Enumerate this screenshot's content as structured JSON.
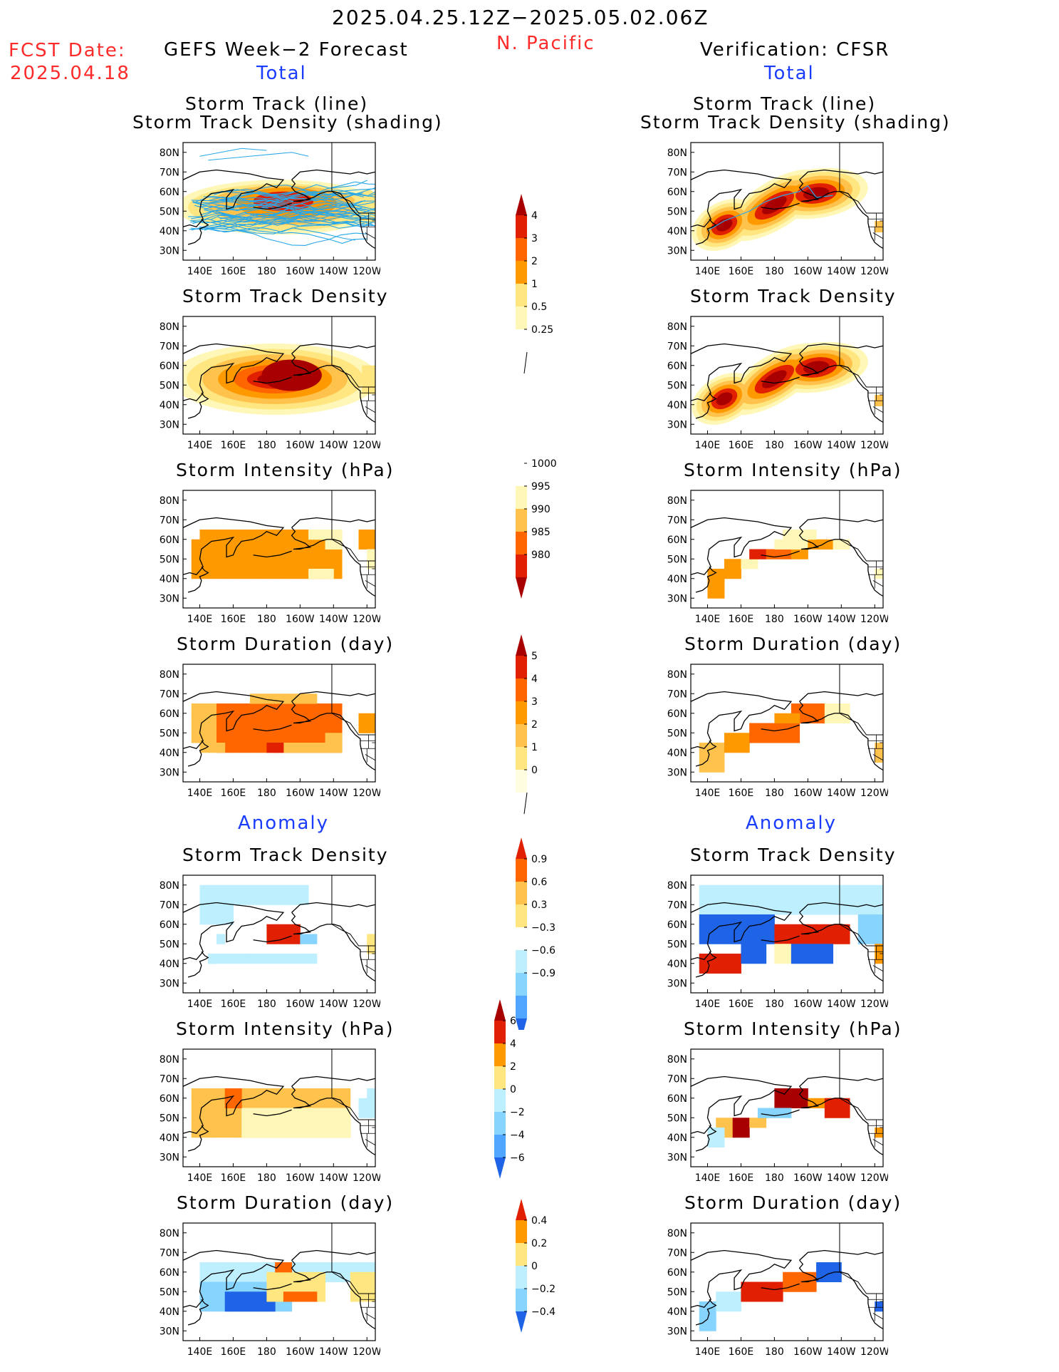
{
  "header": {
    "period": "2025.04.25.12Z−2025.05.02.06Z",
    "fcst_date_label": "FCST Date:",
    "fcst_date_value": "2025.04.18",
    "region": "N. Pacific",
    "left_title": "GEFS Week−2 Forecast",
    "right_title": "Verification: CFSR",
    "total_label": "Total",
    "anomaly_label": "Anomaly"
  },
  "axes": {
    "lat_ticks": [
      "80N",
      "70N",
      "60N",
      "50N",
      "40N",
      "30N"
    ],
    "lon_ticks": [
      "140E",
      "160E",
      "180",
      "160W",
      "140W",
      "120W"
    ]
  },
  "panel_titles": {
    "track_line_1": "Storm Track (line)",
    "track_line_2": "Storm Track Density (shading)",
    "density": "Storm Track Density",
    "intensity": "Storm Intensity (hPa)",
    "duration": "Storm Duration (day)"
  },
  "colorbars": {
    "density_total": [
      "4",
      "3",
      "2",
      "1",
      "0.5",
      "0.25"
    ],
    "intensity_total": [
      "1000",
      "995",
      "990",
      "985",
      "980"
    ],
    "duration_total": [
      "5",
      "4",
      "3",
      "2",
      "1",
      "0"
    ],
    "density_anom": [
      "0.9",
      "0.6",
      "0.3",
      "−0.3",
      "−0.6",
      "−0.9"
    ],
    "intensity_anom": [
      "6",
      "4",
      "2",
      "0",
      "−2",
      "−4",
      "−6"
    ],
    "duration_anom": [
      "0.4",
      "0.2",
      "0",
      "−0.2",
      "−0.4"
    ]
  },
  "colors": {
    "warm": [
      "#fff7b8",
      "#ffe680",
      "#ffc34d",
      "#ff9900",
      "#ff6600",
      "#e02000",
      "#a80000"
    ],
    "cool": [
      "#bdefff",
      "#87d4ff",
      "#4fa5ff",
      "#1f64e6"
    ],
    "track_line": "#29a8e8"
  },
  "chart_data": [
    {
      "type": "heatmap",
      "panel": "forecast-total-track",
      "title": "Storm Track (line) / Storm Track Density (shading)",
      "centers": [
        {
          "lon": 190,
          "lat": 54,
          "level": 4
        },
        {
          "lon": 170,
          "lat": 52,
          "level": 2
        }
      ]
    },
    {
      "type": "heatmap",
      "panel": "verification-total-track",
      "title": "Storm Track (line) / Storm Track Density (shading)",
      "centers": [
        {
          "lon": 150,
          "lat": 42,
          "level": 4
        },
        {
          "lon": 200,
          "lat": 58,
          "level": 5
        }
      ]
    },
    {
      "type": "heatmap",
      "panel": "forecast-total-density",
      "title": "Storm Track Density",
      "centers": [
        {
          "lon": 190,
          "lat": 55,
          "level": 5
        }
      ]
    },
    {
      "type": "heatmap",
      "panel": "verification-total-density",
      "title": "Storm Track Density",
      "centers": [
        {
          "lon": 150,
          "lat": 43,
          "level": 5
        },
        {
          "lon": 205,
          "lat": 59,
          "level": 6
        }
      ]
    },
    {
      "type": "heatmap",
      "panel": "forecast-total-intensity",
      "title": "Storm Intensity (hPa)"
    },
    {
      "type": "heatmap",
      "panel": "verification-total-intensity",
      "title": "Storm Intensity (hPa)"
    },
    {
      "type": "heatmap",
      "panel": "forecast-total-duration",
      "title": "Storm Duration (day)"
    },
    {
      "type": "heatmap",
      "panel": "verification-total-duration",
      "title": "Storm Duration (day)"
    },
    {
      "type": "heatmap",
      "panel": "forecast-anom-density",
      "title": "Storm Track Density"
    },
    {
      "type": "heatmap",
      "panel": "verification-anom-density",
      "title": "Storm Track Density"
    },
    {
      "type": "heatmap",
      "panel": "forecast-anom-intensity",
      "title": "Storm Intensity (hPa)"
    },
    {
      "type": "heatmap",
      "panel": "verification-anom-intensity",
      "title": "Storm Intensity (hPa)"
    },
    {
      "type": "heatmap",
      "panel": "forecast-anom-duration",
      "title": "Storm Duration (day)"
    },
    {
      "type": "heatmap",
      "panel": "verification-anom-duration",
      "title": "Storm Duration (day)"
    }
  ]
}
